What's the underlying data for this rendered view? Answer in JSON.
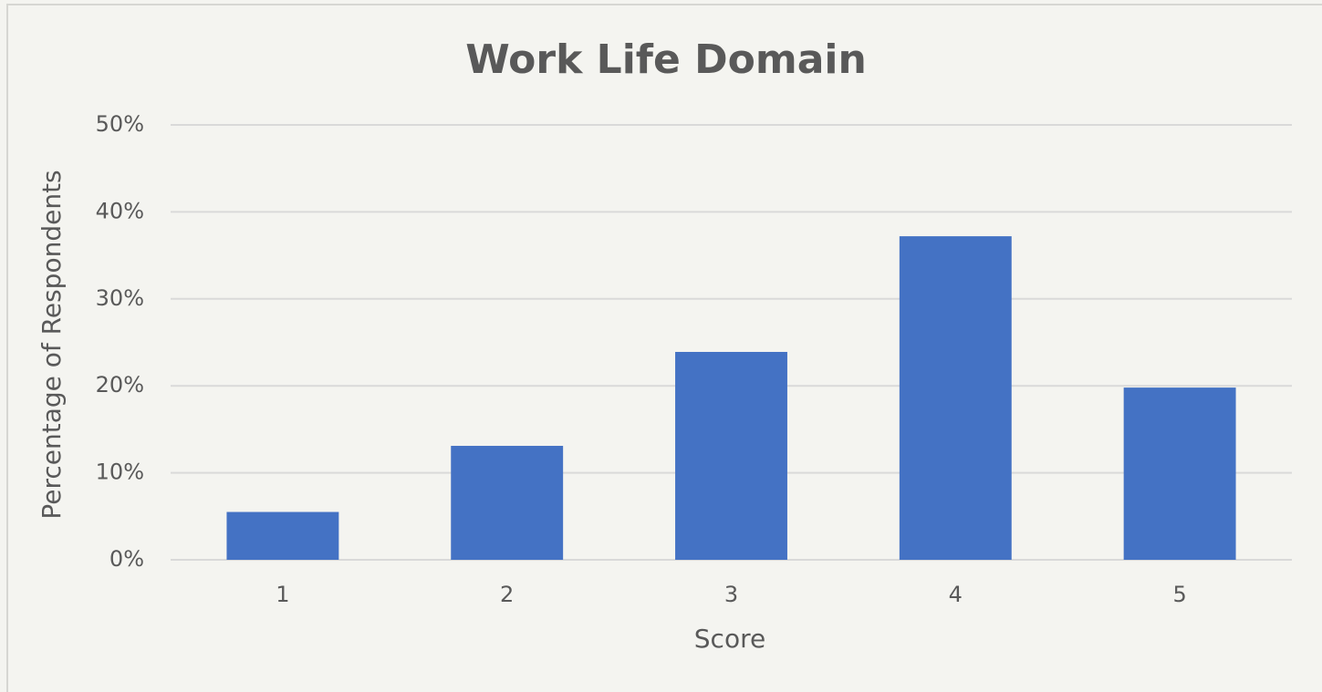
{
  "chart_data": {
    "type": "bar",
    "title": "Work Life Domain",
    "x_label": "Score",
    "y_label": "Percentage of Respondents",
    "categories": [
      "1",
      "2",
      "3",
      "4",
      "5"
    ],
    "values": [
      5.5,
      13.1,
      23.9,
      37.2,
      19.8
    ],
    "color": "#4472c4",
    "ylim": [
      0,
      50
    ],
    "yticks": [
      {
        "value": 0,
        "label": "0%"
      },
      {
        "value": 10,
        "label": "10%"
      },
      {
        "value": 20,
        "label": "20%"
      },
      {
        "value": 30,
        "label": "30%"
      },
      {
        "value": 40,
        "label": "40%"
      },
      {
        "value": 50,
        "label": "50%"
      }
    ],
    "grid": true
  }
}
